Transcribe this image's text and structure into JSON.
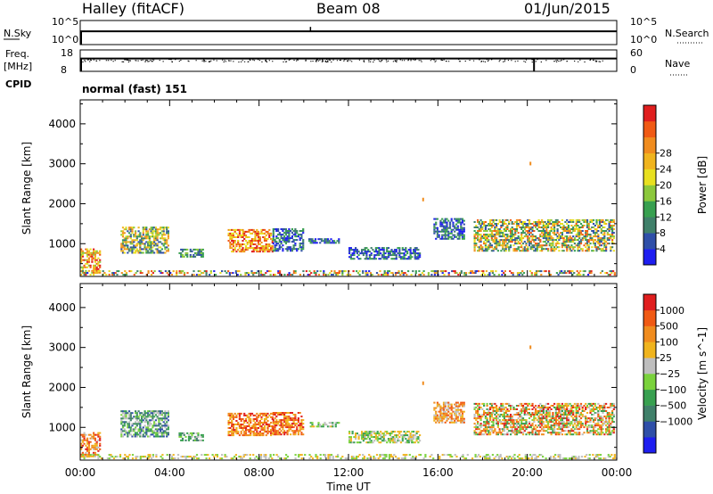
{
  "header": {
    "station": "Halley (fitACF)",
    "beam": "Beam 08",
    "date": "01/Jun/2015"
  },
  "cpid_label": "CPID",
  "cpid_value": "normal (fast) 151",
  "colors": {
    "power": [
      "#1e1ef0",
      "#2f4fa8",
      "#40806a",
      "#38a050",
      "#8cc83c",
      "#e8e020",
      "#f0b41e",
      "#f08c1e",
      "#f05a14",
      "#e01e1e"
    ],
    "velocity": [
      "#1e1ef0",
      "#2f4fa8",
      "#40806a",
      "#38a050",
      "#7ad23c",
      "#bebebe",
      "#f0b41e",
      "#f08c1e",
      "#f05a14",
      "#e01e1e"
    ]
  },
  "chart_data": [
    {
      "type": "line",
      "name": "noise",
      "left_label": "N.Sky",
      "right_label": "N.Search",
      "left_ticks": [
        "10^5",
        "10^0"
      ],
      "right_ticks": [
        "10^5",
        "10^0"
      ],
      "level_fraction": 0.45
    },
    {
      "type": "scatter",
      "name": "freq-nave",
      "left_label": "Freq.",
      "left_unit": "[MHz]",
      "right_label": "Nave",
      "left_ticks": [
        "18",
        "8"
      ],
      "right_ticks": [
        "60",
        "0"
      ],
      "level_fraction": 0.4
    },
    {
      "type": "heatmap",
      "name": "power",
      "ylabel": "Slant Range [km]",
      "yticks": [
        1000,
        2000,
        3000,
        4000
      ],
      "ylim": [
        180,
        4600
      ],
      "colorbar_label": "Power [dB]",
      "colorbar_ticks": [
        "4",
        "8",
        "12",
        "16",
        "20",
        "24",
        "28"
      ]
    },
    {
      "type": "heatmap",
      "name": "velocity",
      "ylabel": "Slant Range [km]",
      "yticks": [
        1000,
        2000,
        3000,
        4000
      ],
      "ylim": [
        180,
        4600
      ],
      "colorbar_label": "Velocity [m s^-1]",
      "colorbar_ticks": [
        "1000",
        "500",
        "100",
        "25",
        "−25",
        "−100",
        "−500",
        "−1000"
      ]
    }
  ],
  "xaxis": {
    "label": "Time UT",
    "ticks": [
      "00:00",
      "04:00",
      "08:00",
      "12:00",
      "16:00",
      "20:00",
      "00:00"
    ],
    "range_hours": [
      0,
      24
    ]
  },
  "echo_regions": [
    {
      "t": [
        0.0,
        0.9
      ],
      "r": [
        250,
        850
      ],
      "pc": [
        4,
        9
      ],
      "vc": [
        5,
        9
      ]
    },
    {
      "t": [
        1.8,
        3.9
      ],
      "r": [
        750,
        1400
      ],
      "pc": [
        1,
        7
      ],
      "vc": [
        1,
        5
      ]
    },
    {
      "t": [
        4.4,
        5.5
      ],
      "r": [
        650,
        850
      ],
      "pc": [
        1,
        4
      ],
      "vc": [
        2,
        5
      ]
    },
    {
      "t": [
        6.6,
        8.6
      ],
      "r": [
        780,
        1350
      ],
      "pc": [
        5,
        9
      ],
      "vc": [
        6,
        9
      ]
    },
    {
      "t": [
        8.6,
        10.0
      ],
      "r": [
        800,
        1350
      ],
      "pc": [
        0,
        3
      ],
      "vc": [
        6,
        9
      ]
    },
    {
      "t": [
        10.2,
        11.6
      ],
      "r": [
        1000,
        1100
      ],
      "pc": [
        0,
        3
      ],
      "vc": [
        3,
        6
      ]
    },
    {
      "t": [
        12.0,
        15.2
      ],
      "r": [
        600,
        900
      ],
      "pc": [
        0,
        3
      ],
      "vc": [
        3,
        6
      ]
    },
    {
      "t": [
        15.8,
        17.2
      ],
      "r": [
        1100,
        1600
      ],
      "pc": [
        0,
        3
      ],
      "vc": [
        5,
        8
      ]
    },
    {
      "t": [
        17.6,
        23.9
      ],
      "r": [
        800,
        1600
      ],
      "pc": [
        1,
        8
      ],
      "vc": [
        3,
        9
      ]
    },
    {
      "t": [
        0.0,
        24.0
      ],
      "r": [
        200,
        320
      ],
      "pc": [
        0,
        9
      ],
      "vc": [
        4,
        6
      ]
    }
  ]
}
